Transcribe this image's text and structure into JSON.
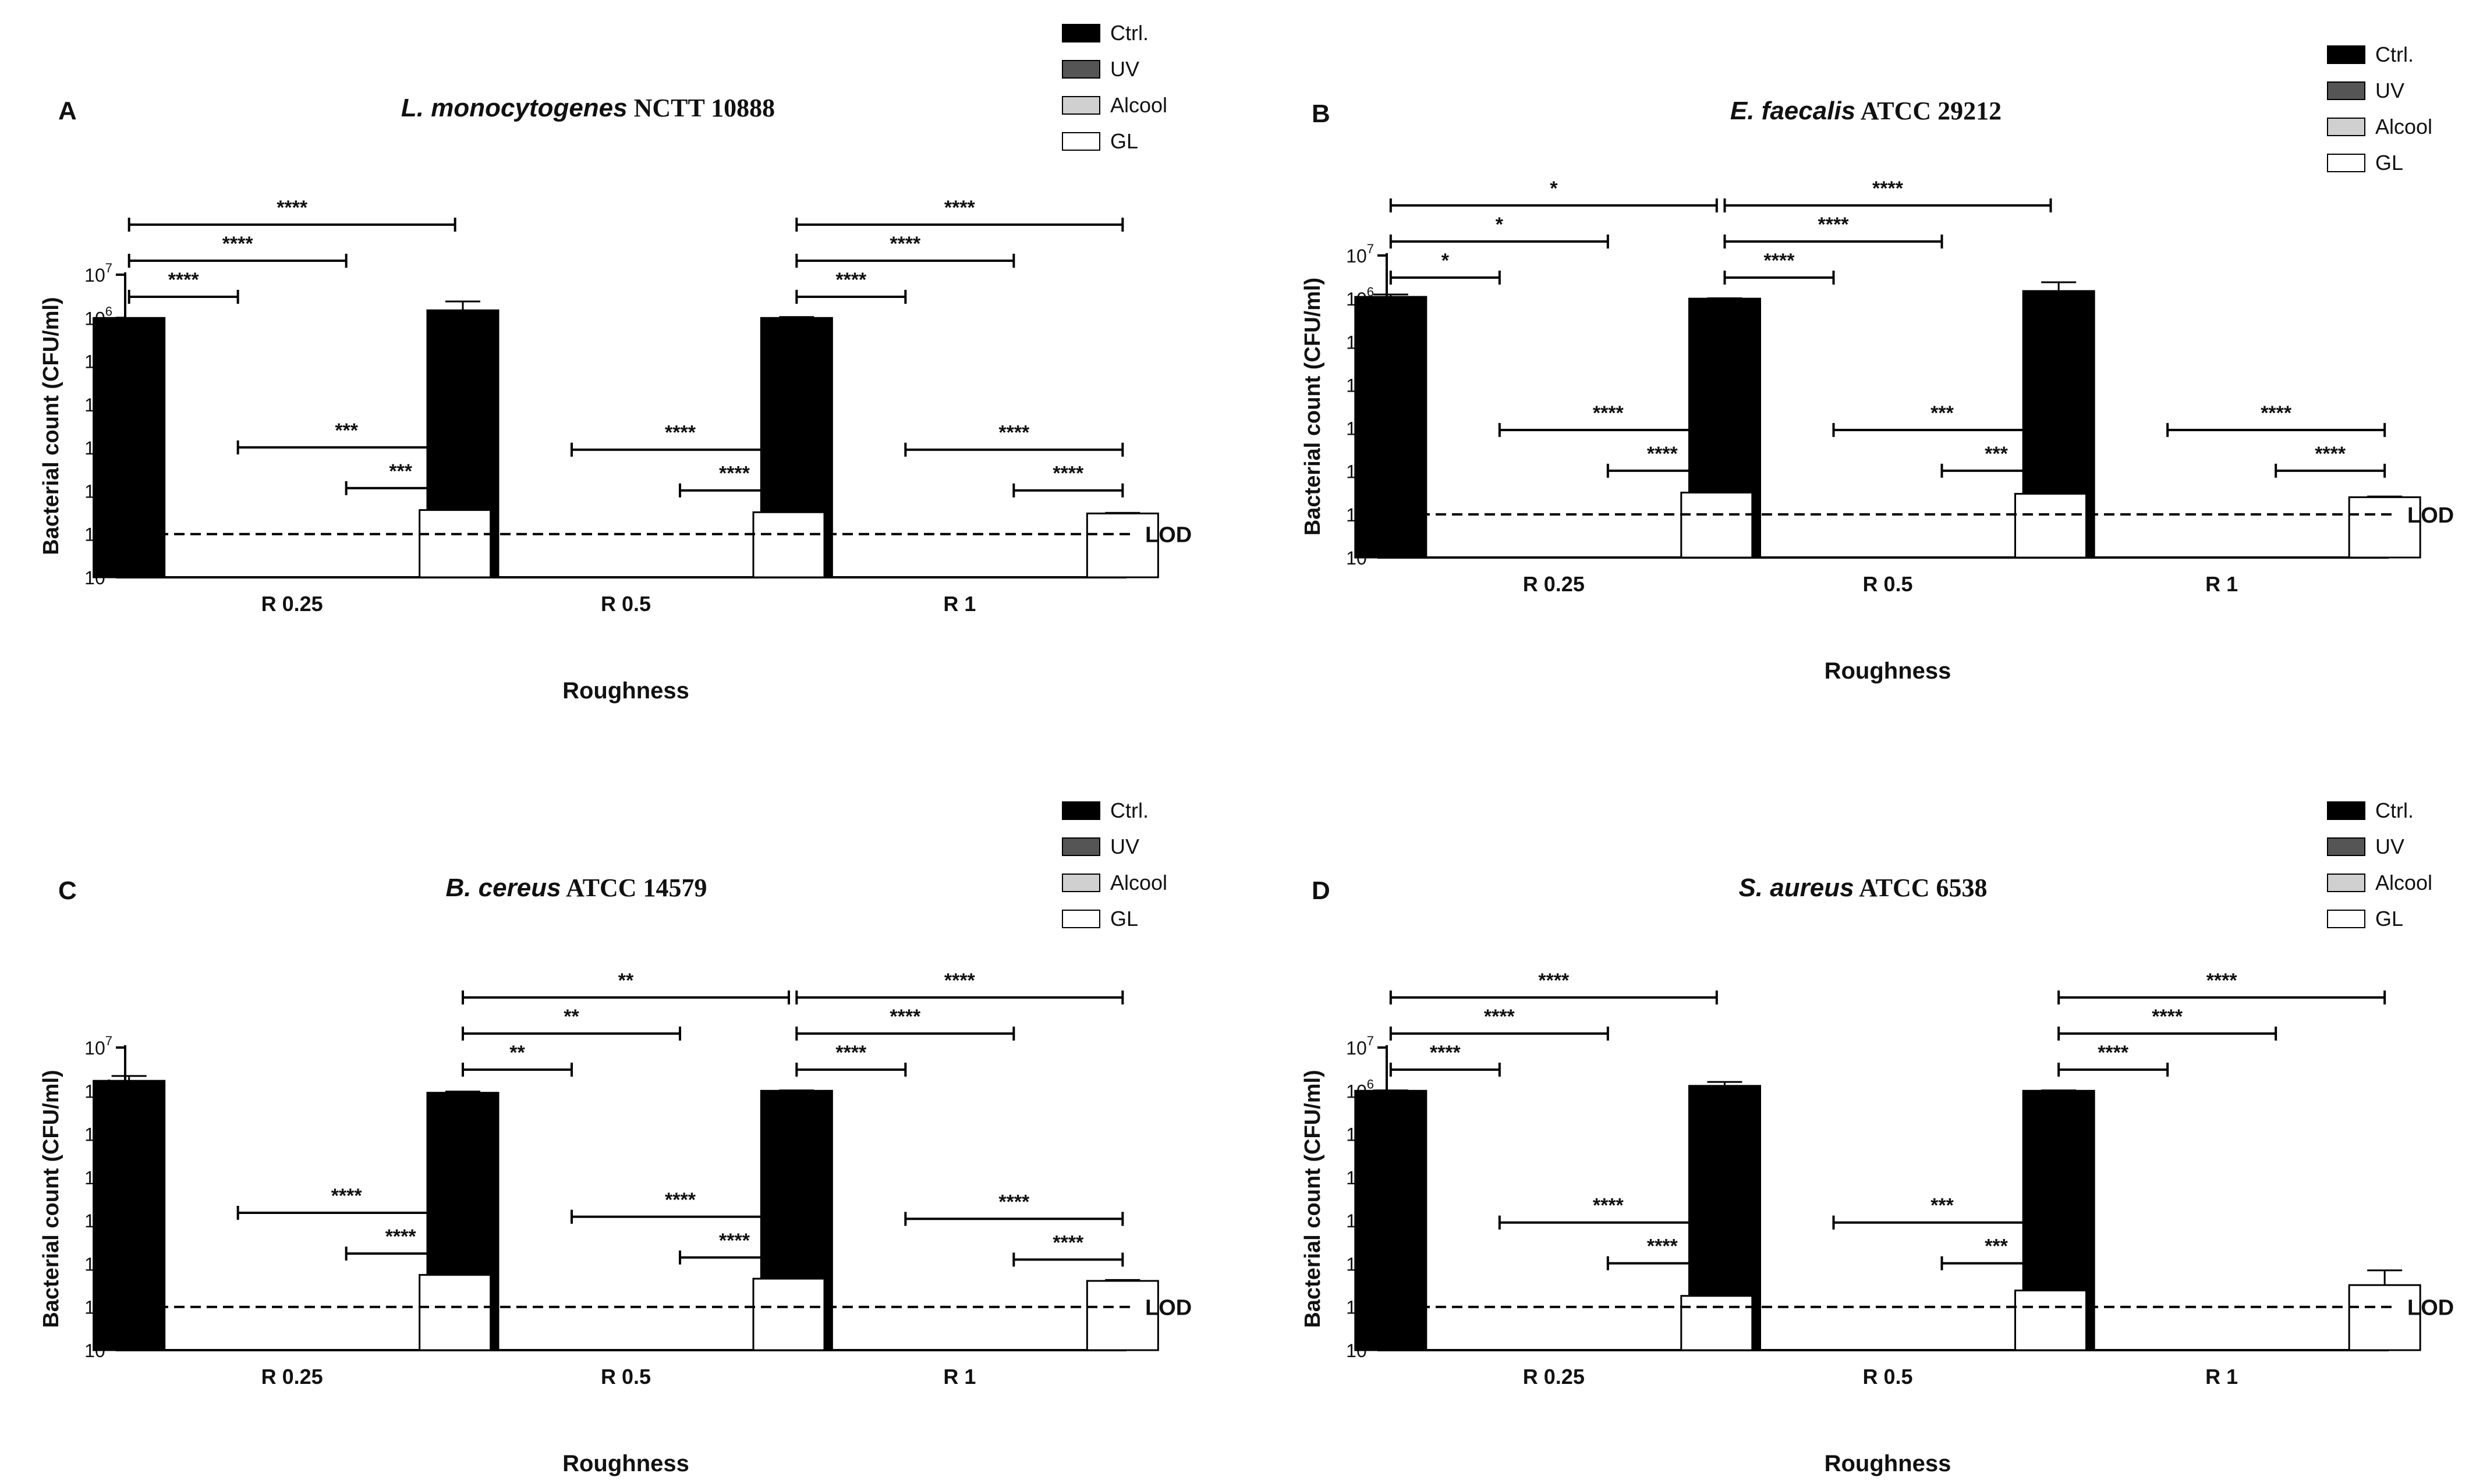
{
  "legend": [
    {
      "name": "Ctrl.",
      "color": "#000000"
    },
    {
      "name": "UV",
      "color": "#555555"
    },
    {
      "name": "Alcool",
      "color": "#d0d0d0"
    },
    {
      "name": "GL",
      "color": "#ffffff"
    }
  ],
  "lod_label": "LOD",
  "chart_data": [
    {
      "type": "bar",
      "panel": "A",
      "title_italic": "L. monocytogenes",
      "title_rest": "NCTT 10888",
      "xlabel": "Roughness",
      "ylabel": "Bacterial count (CFU/ml)",
      "yscale": "log10",
      "ylim": [
        1,
        10000000
      ],
      "categories": [
        "R 0.25",
        "R 0.5",
        "R 1"
      ],
      "lod": 10,
      "series": [
        {
          "name": "Ctrl.",
          "values": [
            1000000,
            1500000,
            1000000
          ],
          "errors": [
            0,
            900000,
            50000
          ]
        },
        {
          "name": "UV",
          "values": [
            0,
            0,
            0
          ],
          "errors": [
            0,
            0,
            0
          ]
        },
        {
          "name": "Alcool",
          "values": [
            0,
            0,
            0
          ],
          "errors": [
            0,
            0,
            0
          ]
        },
        {
          "name": "GL",
          "values": [
            36,
            32,
            30
          ],
          "errors": [
            3,
            1,
            1
          ]
        }
      ],
      "significance": [
        {
          "group": 0,
          "from": 0,
          "to": 1,
          "label": "****",
          "level": 3
        },
        {
          "group": 0,
          "from": 0,
          "to": 2,
          "label": "****",
          "level": 2
        },
        {
          "group": 0,
          "from": 0,
          "to": 3,
          "label": "****",
          "level": 1
        },
        {
          "group": 0,
          "from": 1,
          "to": 3,
          "label": "***",
          "level": -2
        },
        {
          "group": 0,
          "from": 2,
          "to": 3,
          "label": "***",
          "level": -3
        },
        {
          "group": 2,
          "from": 0,
          "to": 1,
          "label": "****",
          "level": 3
        },
        {
          "group": 2,
          "from": 0,
          "to": 2,
          "label": "****",
          "level": 2
        },
        {
          "group": 2,
          "from": 0,
          "to": 3,
          "label": "****",
          "level": 1
        },
        {
          "group": 1,
          "from": 1,
          "to": 3,
          "label": "****",
          "level": -2
        },
        {
          "group": 1,
          "from": 2,
          "to": 3,
          "label": "****",
          "level": -3
        },
        {
          "group": 2,
          "from": 1,
          "to": 3,
          "label": "****",
          "level": -2
        },
        {
          "group": 2,
          "from": 2,
          "to": 3,
          "label": "****",
          "level": -3
        }
      ]
    },
    {
      "type": "bar",
      "panel": "B",
      "title_italic": "E. faecalis",
      "title_rest": "ATCC 29212",
      "xlabel": "Roughness",
      "ylabel": "Bacterial count (CFU/ml)",
      "yscale": "log10",
      "ylim": [
        1,
        10000000
      ],
      "categories": [
        "R 0.25",
        "R 0.5",
        "R 1"
      ],
      "lod": 10,
      "series": [
        {
          "name": "Ctrl.",
          "values": [
            1100000,
            1000000,
            1500000
          ],
          "errors": [
            150000,
            20000,
            900000
          ]
        },
        {
          "name": "UV",
          "values": [
            0,
            0,
            0
          ],
          "errors": [
            0,
            0,
            0
          ]
        },
        {
          "name": "Alcool",
          "values": [
            0,
            0,
            0
          ],
          "errors": [
            0,
            0,
            0
          ]
        },
        {
          "name": "GL",
          "values": [
            32,
            30,
            25
          ],
          "errors": [
            2,
            2,
            1
          ]
        }
      ],
      "significance": [
        {
          "group": 0,
          "from": 0,
          "to": 1,
          "label": "*",
          "level": 3
        },
        {
          "group": 0,
          "from": 0,
          "to": 2,
          "label": "*",
          "level": 2
        },
        {
          "group": 0,
          "from": 0,
          "to": 3,
          "label": "*",
          "level": 1
        },
        {
          "group": 1,
          "from": 0,
          "to": 1,
          "label": "****",
          "level": 3
        },
        {
          "group": 1,
          "from": 0,
          "to": 2,
          "label": "****",
          "level": 2
        },
        {
          "group": 1,
          "from": 0,
          "to": 3,
          "label": "****",
          "level": 1
        },
        {
          "group": 0,
          "from": 1,
          "to": 3,
          "label": "****",
          "level": -2
        },
        {
          "group": 0,
          "from": 2,
          "to": 3,
          "label": "****",
          "level": -3
        },
        {
          "group": 1,
          "from": 1,
          "to": 3,
          "label": "***",
          "level": -2
        },
        {
          "group": 1,
          "from": 2,
          "to": 3,
          "label": "***",
          "level": -3
        },
        {
          "group": 2,
          "from": 1,
          "to": 3,
          "label": "****",
          "level": -2
        },
        {
          "group": 2,
          "from": 2,
          "to": 3,
          "label": "****",
          "level": -3
        }
      ]
    },
    {
      "type": "bar",
      "panel": "C",
      "title_italic": "B. cereus",
      "title_rest": "ATCC 14579",
      "xlabel": "Roughness",
      "ylabel": "Bacterial count (CFU/ml)",
      "yscale": "log10",
      "ylim": [
        1,
        10000000
      ],
      "categories": [
        "R 0.25",
        "R 0.5",
        "R 1"
      ],
      "lod": 10,
      "series": [
        {
          "name": "Ctrl.",
          "values": [
            1700000,
            900000,
            1000000
          ],
          "errors": [
            500000,
            60000,
            20000
          ]
        },
        {
          "name": "UV",
          "values": [
            0,
            0,
            0
          ],
          "errors": [
            0,
            0,
            0
          ]
        },
        {
          "name": "Alcool",
          "values": [
            0,
            0,
            0
          ],
          "errors": [
            0,
            0,
            0
          ]
        },
        {
          "name": "GL",
          "values": [
            55,
            45,
            40
          ],
          "errors": [
            3,
            2,
            2
          ]
        }
      ],
      "significance": [
        {
          "group": 1,
          "from": 0,
          "to": 1,
          "label": "**",
          "level": 3
        },
        {
          "group": 1,
          "from": 0,
          "to": 2,
          "label": "**",
          "level": 2
        },
        {
          "group": 1,
          "from": 0,
          "to": 3,
          "label": "**",
          "level": 1
        },
        {
          "group": 2,
          "from": 0,
          "to": 1,
          "label": "****",
          "level": 3
        },
        {
          "group": 2,
          "from": 0,
          "to": 2,
          "label": "****",
          "level": 2
        },
        {
          "group": 2,
          "from": 0,
          "to": 3,
          "label": "****",
          "level": 1
        },
        {
          "group": 0,
          "from": 1,
          "to": 3,
          "label": "****",
          "level": -2
        },
        {
          "group": 0,
          "from": 2,
          "to": 3,
          "label": "****",
          "level": -3
        },
        {
          "group": 1,
          "from": 1,
          "to": 3,
          "label": "****",
          "level": -2
        },
        {
          "group": 1,
          "from": 2,
          "to": 3,
          "label": "****",
          "level": -3
        },
        {
          "group": 2,
          "from": 1,
          "to": 3,
          "label": "****",
          "level": -2
        },
        {
          "group": 2,
          "from": 2,
          "to": 3,
          "label": "****",
          "level": -3
        }
      ]
    },
    {
      "type": "bar",
      "panel": "D",
      "title_italic": "S. aureus",
      "title_rest": "ATCC 6538",
      "xlabel": "Roughness",
      "ylabel": "Bacterial count (CFU/ml)",
      "yscale": "log10",
      "ylim": [
        1,
        10000000
      ],
      "categories": [
        "R 0.25",
        "R 0.5",
        "R 1"
      ],
      "lod": 10,
      "series": [
        {
          "name": "Ctrl.",
          "values": [
            1000000,
            1300000,
            1000000
          ],
          "errors": [
            20000,
            300000,
            20000
          ]
        },
        {
          "name": "UV",
          "values": [
            0,
            0,
            0
          ],
          "errors": [
            0,
            0,
            0
          ]
        },
        {
          "name": "Alcool",
          "values": [
            0,
            0,
            0
          ],
          "errors": [
            0,
            0,
            0
          ]
        },
        {
          "name": "GL",
          "values": [
            18,
            24,
            32
          ],
          "errors": [
            1,
            1,
            38
          ]
        }
      ],
      "significance": [
        {
          "group": 0,
          "from": 0,
          "to": 1,
          "label": "****",
          "level": 3
        },
        {
          "group": 0,
          "from": 0,
          "to": 2,
          "label": "****",
          "level": 2
        },
        {
          "group": 0,
          "from": 0,
          "to": 3,
          "label": "****",
          "level": 1
        },
        {
          "group": 2,
          "from": 0,
          "to": 1,
          "label": "****",
          "level": 3
        },
        {
          "group": 2,
          "from": 0,
          "to": 2,
          "label": "****",
          "level": 2
        },
        {
          "group": 2,
          "from": 0,
          "to": 3,
          "label": "****",
          "level": 1
        },
        {
          "group": 0,
          "from": 1,
          "to": 3,
          "label": "****",
          "level": -2
        },
        {
          "group": 0,
          "from": 2,
          "to": 3,
          "label": "****",
          "level": -3
        },
        {
          "group": 1,
          "from": 1,
          "to": 3,
          "label": "***",
          "level": -2
        },
        {
          "group": 1,
          "from": 2,
          "to": 3,
          "label": "***",
          "level": -3
        }
      ]
    }
  ]
}
